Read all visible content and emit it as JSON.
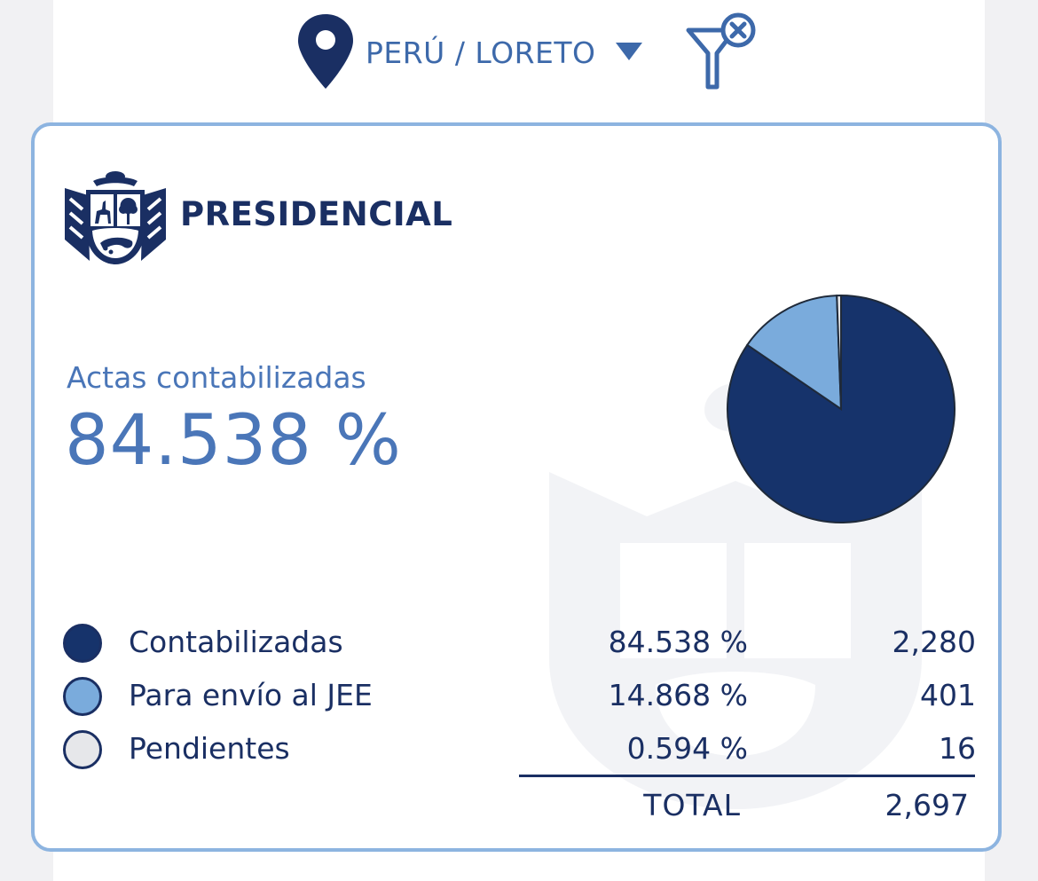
{
  "location": {
    "label": "PERÚ / LORETO",
    "pin_icon": "map-pin-icon",
    "dropdown_icon": "chevron-down-icon",
    "clear_filter_icon": "filter-clear-icon"
  },
  "card": {
    "emblem_icon": "peru-coat-of-arms-icon",
    "title": "PRESIDENCIAL",
    "stat_label": "Actas contabilizadas",
    "stat_value": "84.538 %"
  },
  "legend": [
    {
      "name": "Contabilizadas",
      "pct": "84.538 %",
      "count": "2,280",
      "color": "#16336b"
    },
    {
      "name": "Para envío al JEE",
      "pct": "14.868 %",
      "count": "401",
      "color": "#7aabdc"
    },
    {
      "name": "Pendientes",
      "pct": "0.594 %",
      "count": "16",
      "color": "#e6e7ea"
    }
  ],
  "total": {
    "label": "TOTAL",
    "value": "2,697"
  },
  "colors": {
    "brand_dark": "#1a2f63",
    "accent": "#4a76b8",
    "card_border": "#8db4e0"
  },
  "chart_data": {
    "type": "pie",
    "categories": [
      "Contabilizadas",
      "Para envío al JEE",
      "Pendientes"
    ],
    "values": [
      84.538,
      14.868,
      0.594
    ],
    "counts": [
      2280,
      401,
      16
    ],
    "colors": [
      "#16336b",
      "#7aabdc",
      "#e6e7ea"
    ]
  }
}
